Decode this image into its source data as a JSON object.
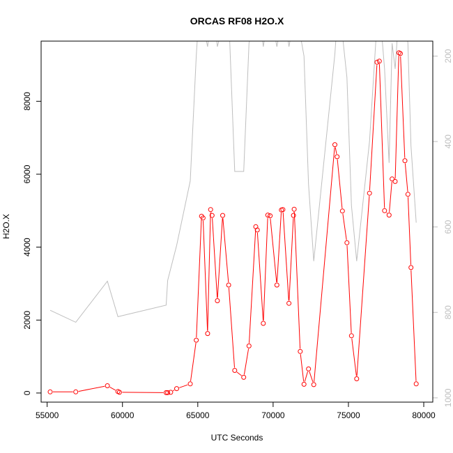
{
  "chart_data": {
    "type": "line",
    "title": "ORCAS RF08 H2O.X",
    "xlabel": "UTC Seconds",
    "ylabel": "H2O.X",
    "xlim": [
      54600,
      80600
    ],
    "ylim": [
      -250,
      9650
    ],
    "x_ticks": [
      55000,
      60000,
      65000,
      70000,
      75000,
      80000
    ],
    "x_tick_labels": [
      "55000",
      "60000",
      "65000",
      "70000",
      "75000",
      "80000"
    ],
    "y_ticks": [
      0,
      2000,
      4000,
      6000,
      8000
    ],
    "y_tick_labels": [
      "0",
      "2000",
      "4000",
      "6000",
      "8000"
    ],
    "y2_ticks": [
      200,
      400,
      600,
      800,
      1000
    ],
    "y2_tick_labels": [
      "200",
      "400",
      "600",
      "800",
      "1000"
    ],
    "y2_lim": [
      1010,
      165
    ],
    "grid": false,
    "series": [
      {
        "color": "#ff0000",
        "markers": "open-circle",
        "x": [
          55200,
          56900,
          59000,
          59700,
          59800,
          62900,
          63000,
          63200,
          63600,
          64500,
          64900,
          65250,
          65350,
          65650,
          65850,
          65950,
          66300,
          66650,
          67050,
          67450,
          68050,
          68400,
          68850,
          68950,
          69350,
          69650,
          69800,
          70250,
          70550,
          70650,
          71050,
          71350,
          71400,
          71800,
          72050,
          72350,
          72700,
          74100,
          74250,
          74600,
          74900,
          75200,
          75550,
          76400,
          76900,
          77050,
          77400,
          77700,
          77900,
          78100,
          78350,
          78450,
          78750,
          78950,
          79150,
          79500
        ],
        "y": [
          30,
          30,
          200,
          40,
          20,
          10,
          10,
          20,
          120,
          250,
          1450,
          4850,
          4800,
          1630,
          5030,
          4870,
          2530,
          4870,
          2960,
          620,
          430,
          1290,
          4560,
          4470,
          1910,
          4880,
          4860,
          2960,
          5020,
          5030,
          2460,
          4870,
          5040,
          1140,
          240,
          660,
          230,
          6810,
          6480,
          4990,
          4120,
          1570,
          390,
          5480,
          9070,
          9100,
          5000,
          4880,
          5870,
          5800,
          9330,
          9310,
          6370,
          5450,
          3440,
          250
        ]
      },
      {
        "color": "#bebebe",
        "axis": "right",
        "x": [
          55200,
          56900,
          59000,
          59700,
          62900,
          63000,
          63600,
          64500,
          64900,
          65150,
          65300,
          65650,
          65850,
          65950,
          66300,
          66650,
          67050,
          67450,
          68050,
          68400,
          68850,
          68950,
          69350,
          69650,
          69800,
          70250,
          70550,
          70650,
          71050,
          71350,
          71400,
          71800,
          72050,
          72350,
          72700,
          74100,
          74250,
          74600,
          74900,
          75200,
          75550,
          76400,
          76900,
          77050,
          77400,
          77700,
          77900,
          78100,
          78350,
          78450,
          78750,
          78950,
          79150,
          79500
        ],
        "y": [
          795,
          823,
          727,
          810,
          783,
          725,
          643,
          492,
          200,
          60,
          120,
          178,
          120,
          60,
          178,
          130,
          100,
          470,
          470,
          170,
          100,
          60,
          178,
          110,
          90,
          178,
          120,
          60,
          178,
          120,
          100,
          150,
          200,
          500,
          680,
          195,
          120,
          150,
          250,
          550,
          680,
          400,
          120,
          80,
          230,
          450,
          170,
          230,
          100,
          60,
          110,
          170,
          410,
          590
        ]
      }
    ]
  }
}
